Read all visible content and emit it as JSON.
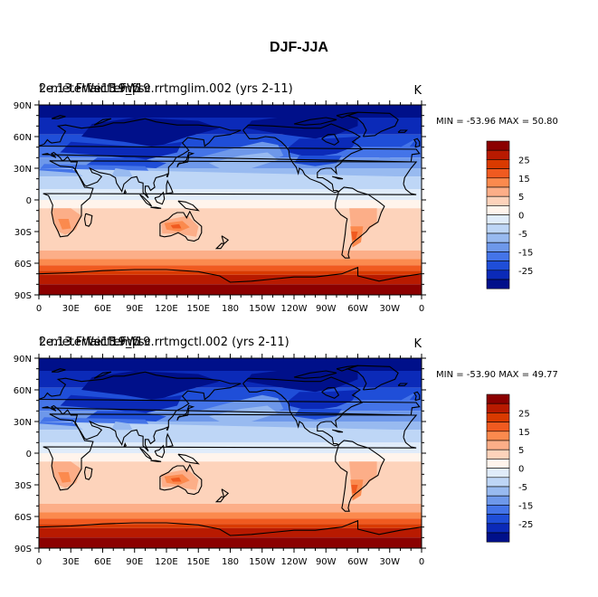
{
  "figure": {
    "title": "DJF-JJA"
  },
  "axes": {
    "lat_labels": [
      "90N",
      "60N",
      "30N",
      "0",
      "30S",
      "60S",
      "90S"
    ],
    "lon_labels": [
      "0",
      "30E",
      "60E",
      "90E",
      "120E",
      "150E",
      "180",
      "150W",
      "120W",
      "90W",
      "60W",
      "30W",
      "0"
    ]
  },
  "colorbar": {
    "labels": [
      "25",
      "15",
      "5",
      "0",
      "-5",
      "-15",
      "-25"
    ],
    "colors": [
      "#8b0000",
      "#b81a00",
      "#d93a00",
      "#f05a20",
      "#fb8a4e",
      "#fcae88",
      "#fdd3bb",
      "#fff4ec",
      "#e0ecfa",
      "#bed6f6",
      "#98baf0",
      "#6e98ea",
      "#4474e8",
      "#1f4ed8",
      "#0b2ab8",
      "#00108a"
    ]
  },
  "panels": [
    {
      "overlay_title": "2-meter air temp",
      "overlay_title_2": "f.e13.FWsc",
      "case_title": "f.e.13.FWscf19_f19.rrtmglim.002 (yrs 2-11)",
      "units": "K",
      "stats": "MIN = -53.96  MAX =  50.80"
    },
    {
      "overlay_title": "2-meter air temp",
      "overlay_title_2": "f.e13.FWsc",
      "case_title": "f.e.13.FWscf19_f19.rrtmgctl.002 (yrs 2-11)",
      "units": "K",
      "stats": "MIN = -53.90  MAX =  49.77"
    }
  ],
  "map_colors": {
    "deep_blue": "#00108a",
    "dark_blue": "#0b2ab8",
    "blue": "#1f4ed8",
    "mid_blue": "#4474e8",
    "light_blue": "#6e98ea",
    "pale_blue": "#98baf0",
    "paler_blue": "#bed6f6",
    "lightest_blue": "#e0ecfa",
    "cream": "#fff4ec",
    "peach": "#fdd3bb",
    "salmon": "#fcae88",
    "orange": "#fb8a4e",
    "red_orange": "#f05a20",
    "red": "#d93a00",
    "dark_red": "#b81a00",
    "darkest_red": "#8b0000"
  }
}
